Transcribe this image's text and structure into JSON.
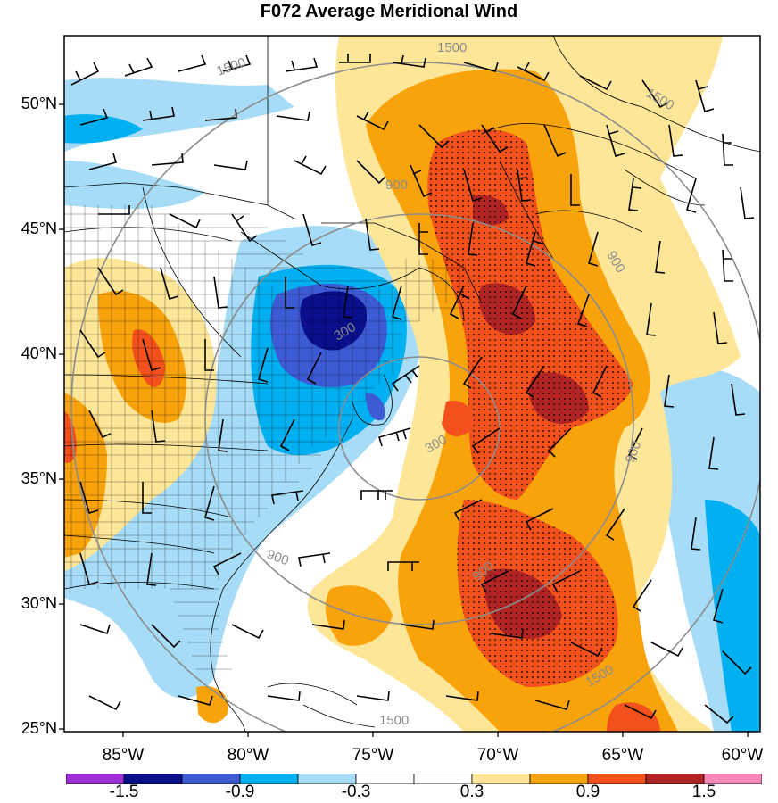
{
  "title": "F072 Average Meridional Wind",
  "lat_labels": [
    "50°N",
    "45°N",
    "40°N",
    "35°N",
    "30°N",
    "25°N"
  ],
  "lon_labels": [
    "85°W",
    "80°W",
    "75°W",
    "70°W",
    "65°W",
    "60°W"
  ],
  "contour_labels": [
    "1500",
    "1500",
    "1500",
    "1500",
    "1500",
    "900",
    "900",
    "900",
    "900",
    "900",
    "300",
    "300"
  ],
  "colorbar": {
    "colors": [
      "#9f2fd9",
      "#0a0f8c",
      "#3e5bd6",
      "#00b0f0",
      "#a6dcf7",
      "#ffffff",
      "#ffffff",
      "#fde697",
      "#f9a30c",
      "#f2501c",
      "#b02424",
      "#f988b8"
    ],
    "labels": [
      "-1.5",
      "-0.9",
      "-0.3",
      "0.3",
      "0.9",
      "1.5"
    ]
  },
  "field_colors": {
    "light_blue": "#a6dcf7",
    "blue": "#00b0f0",
    "medium_blue": "#3e5bd6",
    "dark_blue": "#0a0f8c",
    "yellow": "#fde697",
    "orange": "#f9a30c",
    "red": "#f2501c",
    "dark_red": "#b02424"
  }
}
